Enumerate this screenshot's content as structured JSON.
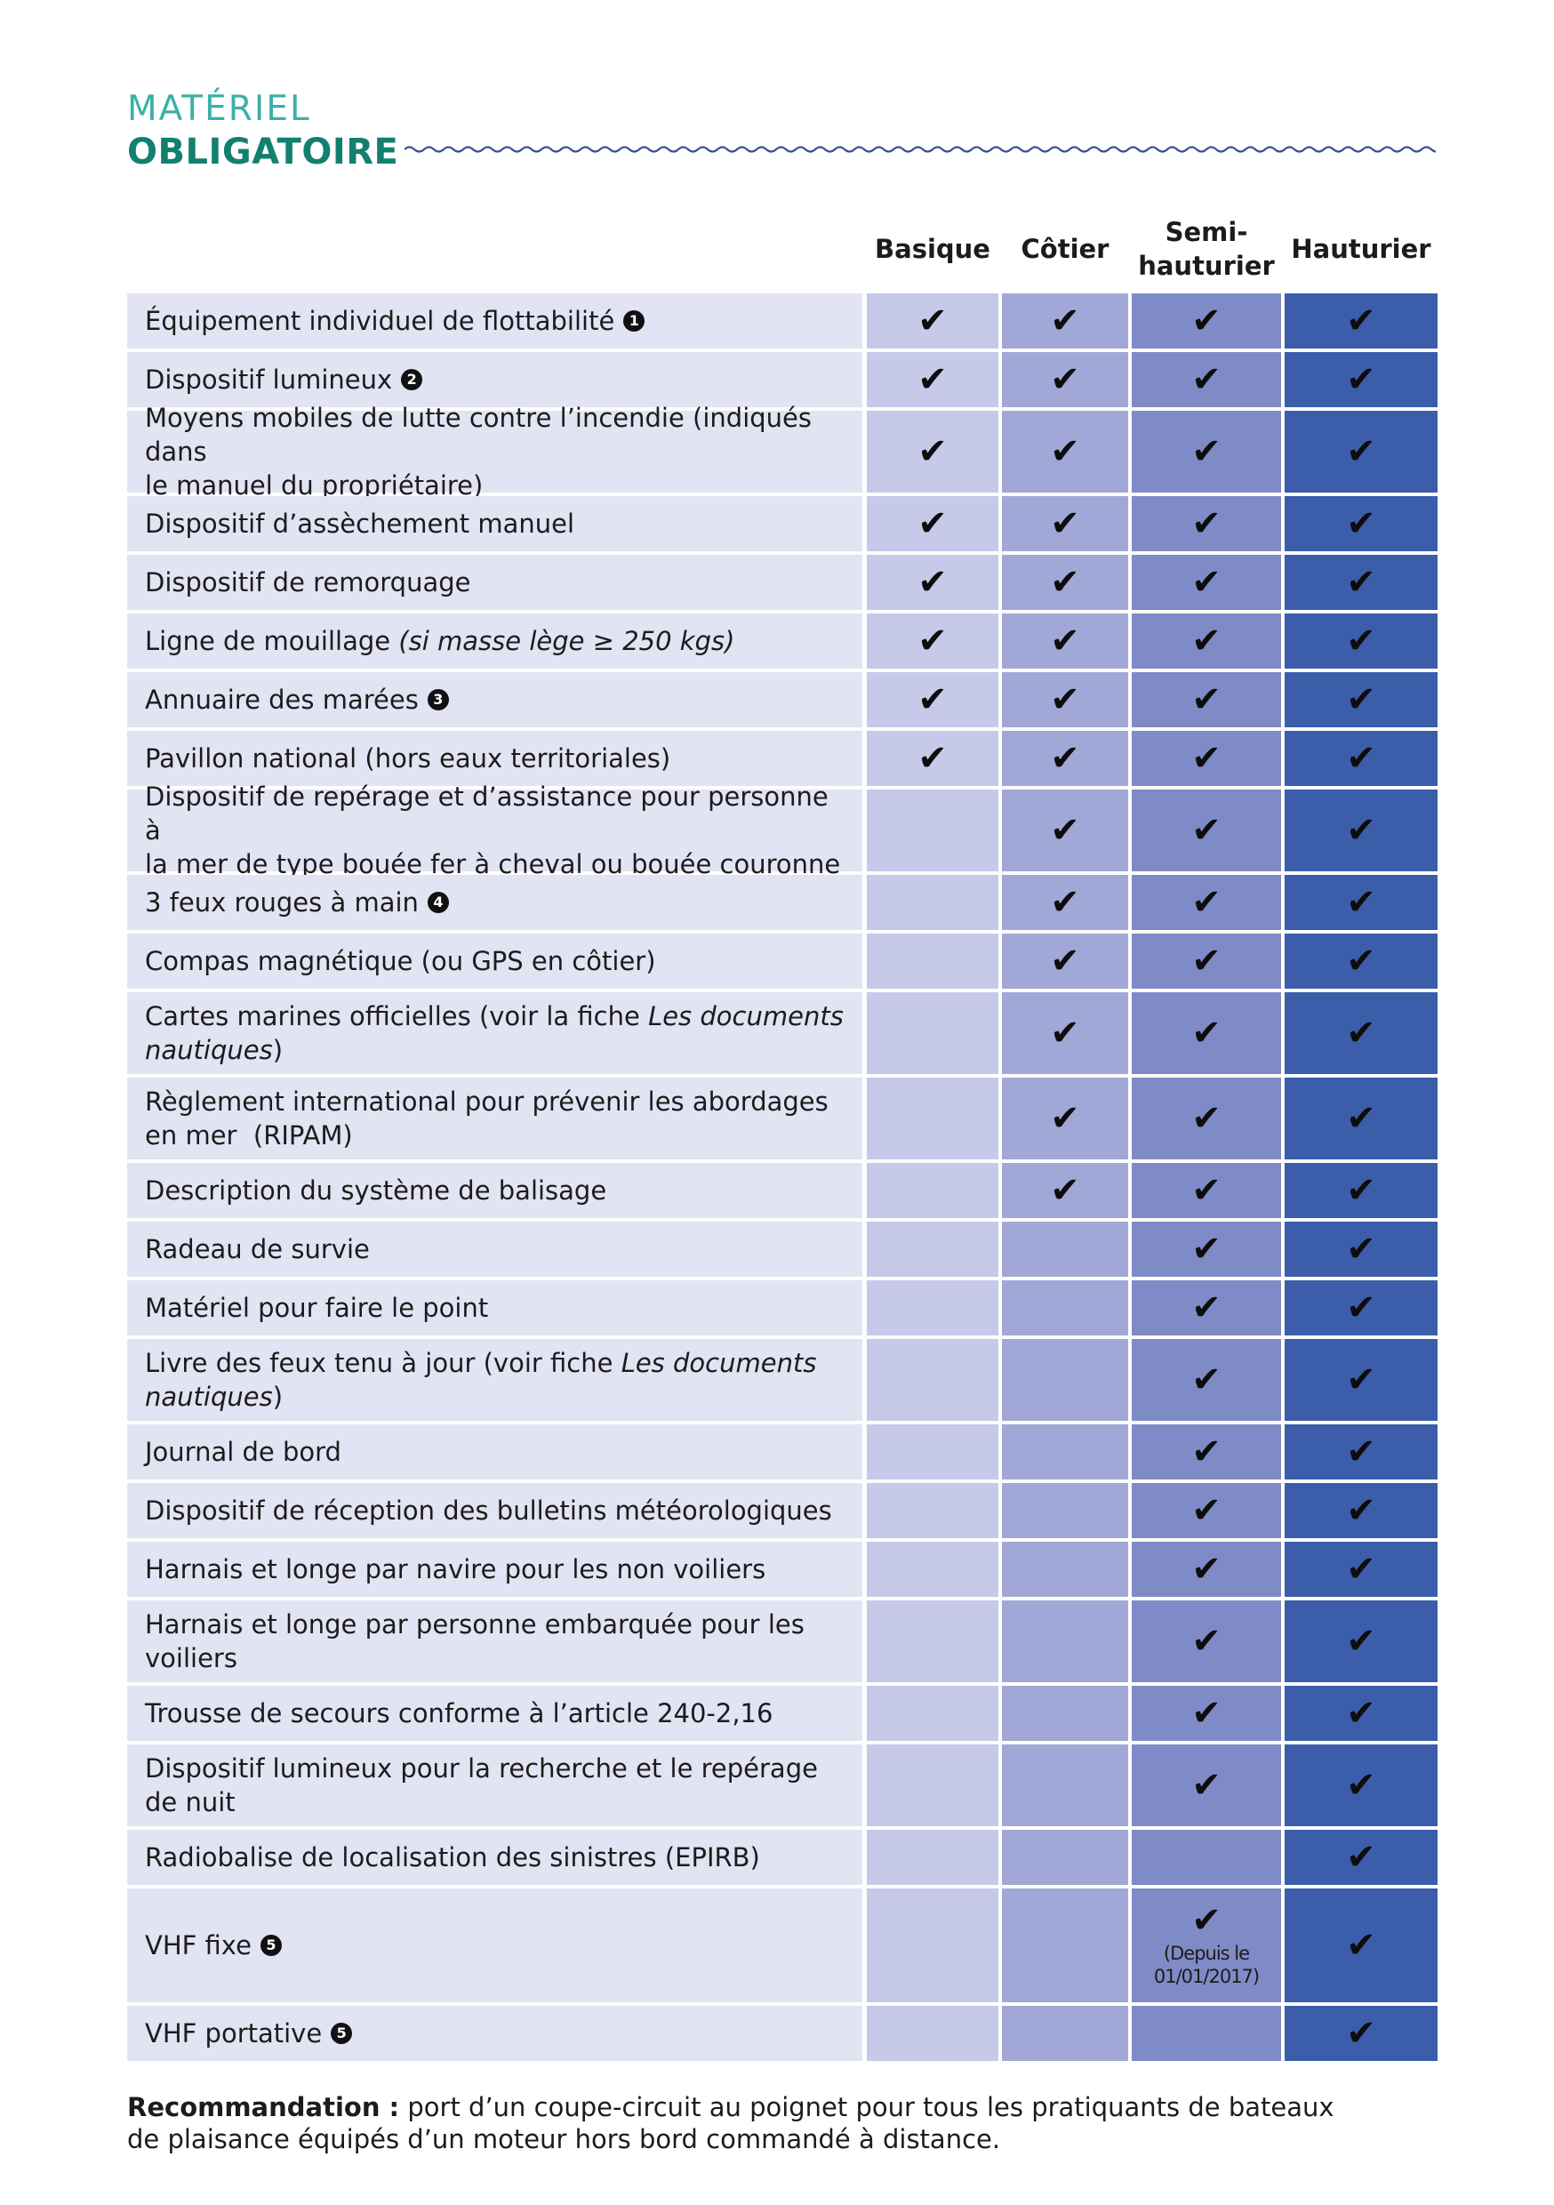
{
  "title": {
    "line1": "MATÉRIEL",
    "line2": "OBLIGATOIRE"
  },
  "columns": [
    "Basique",
    "Côtier",
    "Semi-\nhauturier",
    "Hauturier"
  ],
  "check_symbol": "✔",
  "colors": {
    "title_light": "#3bb0a6",
    "title_dark": "#128070",
    "label_bg": "#e2e3f3",
    "basique_bg": "#c6c9e7",
    "cotier_bg": "#a1a8d7",
    "semi_bg": "#7f8bc6",
    "hauturier_bg": "#3b5daa"
  },
  "rows": [
    {
      "label": "Équipement individuel de flottabilité",
      "badge": "1",
      "checks": [
        true,
        true,
        true,
        true
      ]
    },
    {
      "label": "Dispositif lumineux",
      "badge": "2",
      "checks": [
        true,
        true,
        true,
        true
      ]
    },
    {
      "label": "Moyens mobiles de lutte contre l’incendie (indiqués dans\nle manuel du propriétaire)",
      "checks": [
        true,
        true,
        true,
        true
      ]
    },
    {
      "label": "Dispositif d’assèchement manuel",
      "checks": [
        true,
        true,
        true,
        true
      ]
    },
    {
      "label": "Dispositif de remorquage",
      "checks": [
        true,
        true,
        true,
        true
      ]
    },
    {
      "label": "Ligne de mouillage ",
      "label_italic": "(si masse lège ≥ 250 kgs)",
      "checks": [
        true,
        true,
        true,
        true
      ]
    },
    {
      "label": "Annuaire des marées",
      "badge": "3",
      "checks": [
        true,
        true,
        true,
        true
      ]
    },
    {
      "label": "Pavillon national (hors eaux territoriales)",
      "checks": [
        true,
        true,
        true,
        true
      ]
    },
    {
      "label": "Dispositif de repérage et d’assistance pour personne à\nla mer de type bouée fer à cheval ou bouée couronne",
      "checks": [
        false,
        true,
        true,
        true
      ]
    },
    {
      "label": "3 feux rouges à main",
      "badge": "4",
      "checks": [
        false,
        true,
        true,
        true
      ]
    },
    {
      "label": "Compas magnétique (ou GPS en côtier)",
      "checks": [
        false,
        true,
        true,
        true
      ]
    },
    {
      "label": "Cartes marines officielles (voir la fiche ",
      "label_italic": "Les documents\nnautiques",
      "label_after": ")",
      "checks": [
        false,
        true,
        true,
        true
      ]
    },
    {
      "label": "Règlement international pour prévenir les abordages\nen mer  (RIPAM)",
      "checks": [
        false,
        true,
        true,
        true
      ]
    },
    {
      "label": "Description du système de balisage",
      "checks": [
        false,
        true,
        true,
        true
      ]
    },
    {
      "label": "Radeau de survie",
      "checks": [
        false,
        false,
        true,
        true
      ]
    },
    {
      "label": "Matériel pour faire le point",
      "checks": [
        false,
        false,
        true,
        true
      ]
    },
    {
      "label": "Livre des feux tenu à jour (voir fiche ",
      "label_italic": "Les documents\nnautiques",
      "label_after": ")",
      "checks": [
        false,
        false,
        true,
        true
      ]
    },
    {
      "label": "Journal de bord",
      "checks": [
        false,
        false,
        true,
        true
      ]
    },
    {
      "label": "Dispositif de réception des bulletins météorologiques",
      "checks": [
        false,
        false,
        true,
        true
      ]
    },
    {
      "label": "Harnais et longe par navire pour les non voiliers",
      "checks": [
        false,
        false,
        true,
        true
      ]
    },
    {
      "label": "Harnais et longe par personne embarquée pour les\nvoiliers",
      "checks": [
        false,
        false,
        true,
        true
      ]
    },
    {
      "label": "Trousse de secours conforme à l’article 240-2,16",
      "checks": [
        false,
        false,
        true,
        true
      ]
    },
    {
      "label": "Dispositif lumineux pour la recherche et le repérage\nde nuit",
      "checks": [
        false,
        false,
        true,
        true
      ]
    },
    {
      "label": "Radiobalise de localisation des sinistres (EPIRB)",
      "checks": [
        false,
        false,
        false,
        true
      ]
    },
    {
      "label": "VHF fixe",
      "badge": "5",
      "checks": [
        false,
        false,
        true,
        true
      ],
      "semi_note": "(Depuis le\n01/01/2017)"
    },
    {
      "label": "VHF portative",
      "badge": "5",
      "checks": [
        false,
        false,
        false,
        true
      ]
    }
  ],
  "recommendation": {
    "bold": "Recommandation :",
    "text": " port d’un coupe-circuit au poignet pour tous les pratiquants de bateaux\nde plaisance équipés d’un moteur hors bord commandé à distance."
  }
}
